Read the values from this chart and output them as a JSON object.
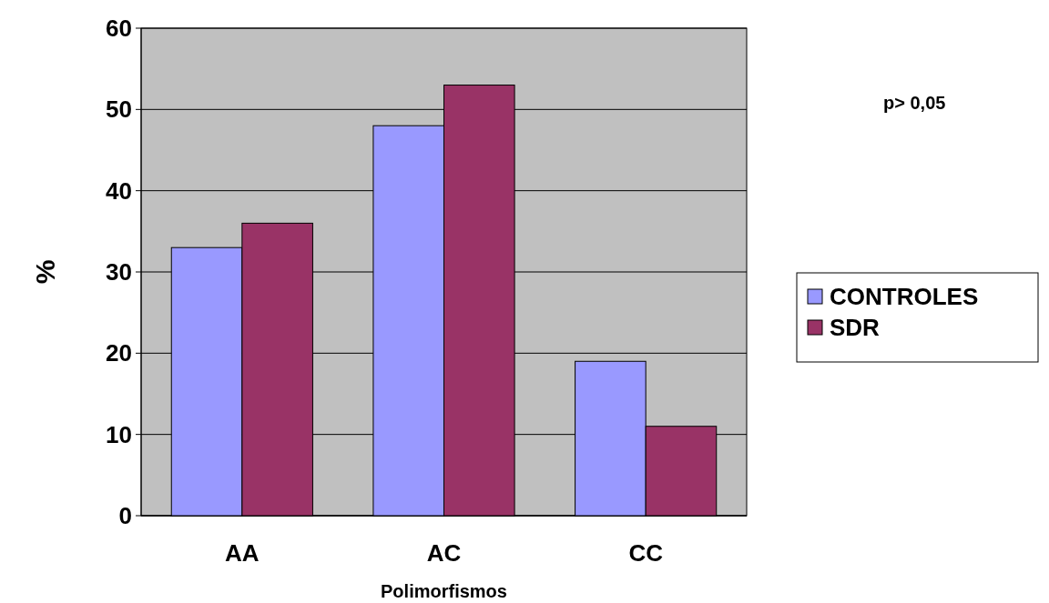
{
  "chart_data": {
    "type": "bar",
    "xlabel": "Polimorfismos",
    "ylabel": "%",
    "categories": [
      "AA",
      "AC",
      "CC"
    ],
    "series": [
      {
        "name": "CONTROLES",
        "color": "#9999ff",
        "values": [
          33,
          48,
          19
        ]
      },
      {
        "name": "SDR",
        "color": "#993366",
        "values": [
          36,
          53,
          11
        ]
      }
    ],
    "ylim": [
      0,
      60
    ],
    "yticks": [
      0,
      10,
      20,
      30,
      40,
      50,
      60
    ],
    "grid": "y",
    "legend": "right",
    "annotations": [
      "p> 0,05"
    ]
  }
}
